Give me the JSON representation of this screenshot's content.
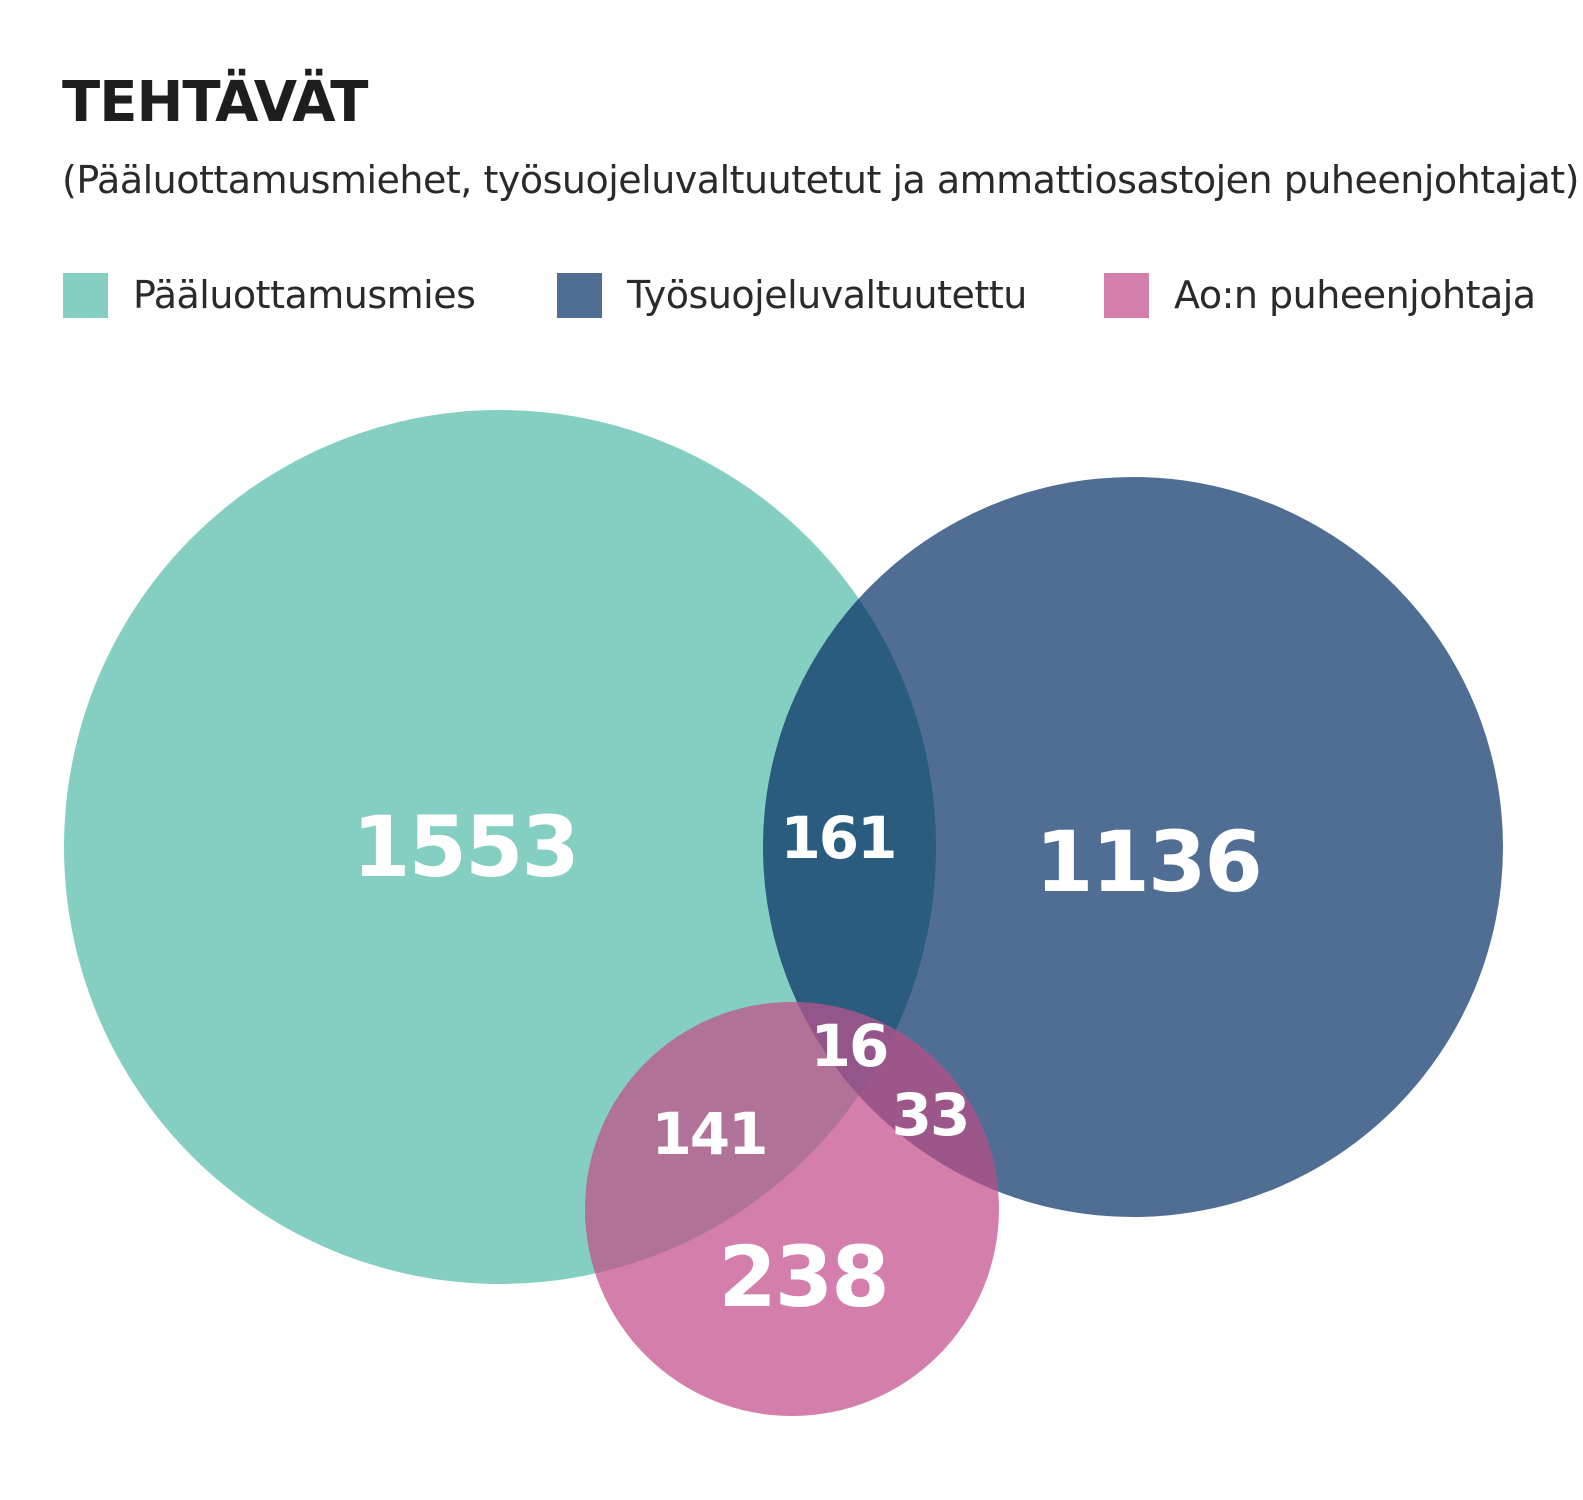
{
  "title": "TEHTÄVÄT",
  "subtitle": "(Pääluottamusmiehet, työsuojeluvaltuutetut ja ammattiosastojen puheenjohtajat)",
  "legend": [
    {
      "label": "Pääluottamusmies",
      "color": "#84cfc2"
    },
    {
      "label": "Työsuojeluvaltuutettu",
      "color": "#506d93"
    },
    {
      "label": "Ao:n puheenjohtaja",
      "color": "#d47fab"
    }
  ],
  "venn": {
    "sets": [
      {
        "name": "Pääluottamusmies",
        "only": "1553",
        "color": "#84cfc2"
      },
      {
        "name": "Työsuojeluvaltuutettu",
        "only": "1136",
        "color": "#506d93"
      },
      {
        "name": "Ao:n puheenjohtaja",
        "only": "238",
        "color": "#d47fab"
      }
    ],
    "intersections": {
      "paaluottamusmies_tyosuojeluvaltuutettu": "161",
      "paaluottamusmies_puheenjohtaja": "141",
      "tyosuojeluvaltuutettu_puheenjohtaja": "33",
      "all_three": "16"
    },
    "overlap_colors": {
      "teal_blue": "#2a5c80",
      "teal_pink": "#b07297",
      "blue_pink": "#9d568a",
      "all_three": "#94568a"
    }
  }
}
